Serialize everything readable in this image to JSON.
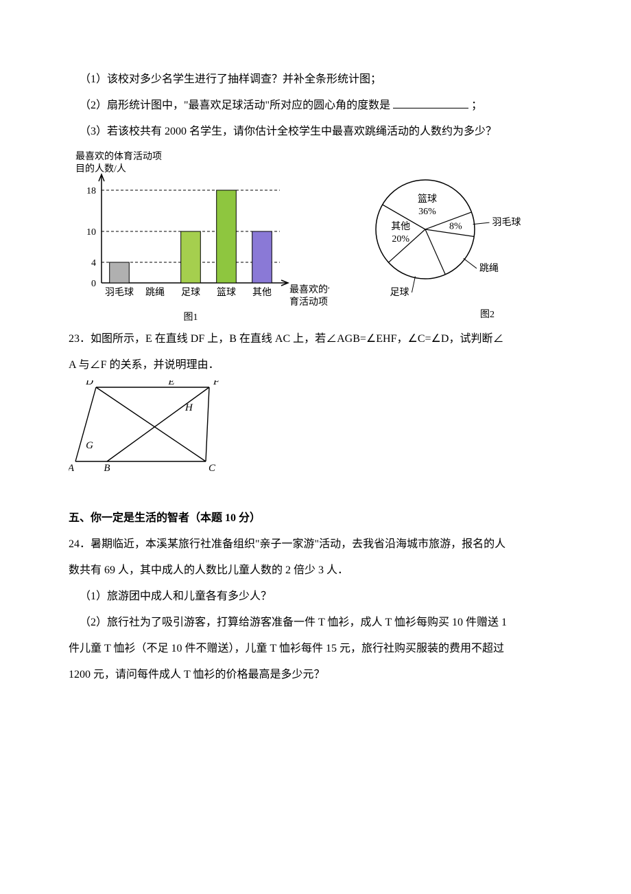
{
  "q22": {
    "part1": "（1）该校对多少名学生进行了抽样调查？并补全条形统计图；",
    "part2_prefix": "（2）扇形统计图中，\"最喜欢足球活动\"所对应的圆心角的度数是",
    "part2_suffix": "；",
    "part3": "（3）若该校共有 2000 名学生，请你估计全校学生中最喜欢跳绳活动的人数约为多少？"
  },
  "bar_chart": {
    "type": "bar",
    "y_title_line1": "最喜欢的体育活动项",
    "y_title_line2": "目的人数/人",
    "categories": [
      "羽毛球",
      "跳绳",
      "足球",
      "篮球",
      "其他"
    ],
    "values": [
      4,
      null,
      10,
      18,
      10
    ],
    "bar_colors": [
      "#b0b0b0",
      "#ffffff",
      "#a5cf4e",
      "#8ec63f",
      "#8a79d6"
    ],
    "y_ticks": [
      0,
      4,
      10,
      18
    ],
    "ymax": 20,
    "axis_color": "#000000",
    "grid_color": "#000000",
    "x_label_line1": "最喜欢的体",
    "x_label_line2": "育活动项目",
    "caption": "图1",
    "label_fontsize": 14,
    "tick_fontsize": 14
  },
  "pie_chart": {
    "type": "pie",
    "slices": [
      {
        "label": "篮球",
        "pct_text": "36%",
        "pct": 36,
        "color": "#ffffff"
      },
      {
        "label": "羽毛球",
        "pct_text": "8%",
        "pct": 8,
        "color": "#ffffff"
      },
      {
        "label": "跳绳",
        "pct_text": "",
        "pct": 16,
        "color": "#ffffff"
      },
      {
        "label": "足球",
        "pct_text": "",
        "pct": 20,
        "color": "#ffffff"
      },
      {
        "label": "其他",
        "pct_text": "20%",
        "pct": 20,
        "color": "#ffffff"
      }
    ],
    "stroke": "#000000",
    "label_fontsize": 14,
    "caption": "图2"
  },
  "q23": {
    "text_line1": "23．如图所示，E 在直线 DF 上，B 在直线 AC 上，若∠AGB=∠EHF，∠C=∠D，试判断∠",
    "text_line2": "A 与∠F 的关系，并说明理由．",
    "points": {
      "A": {
        "x": 10,
        "y": 118,
        "label": "A"
      },
      "B": {
        "x": 56,
        "y": 118,
        "label": "B"
      },
      "C": {
        "x": 200,
        "y": 118,
        "label": "C"
      },
      "D": {
        "x": 40,
        "y": 10,
        "label": "D"
      },
      "E": {
        "x": 150,
        "y": 10,
        "label": "E"
      },
      "F": {
        "x": 205,
        "y": 10,
        "label": "F"
      },
      "G": {
        "x": 44,
        "y": 85,
        "label": "G"
      },
      "H": {
        "x": 160,
        "y": 38,
        "label": "H"
      }
    },
    "stroke": "#000000",
    "label_fontsize": 15
  },
  "section5_title": "五、你一定是生活的智者（本题 10 分）",
  "q24": {
    "line1": "24．暑期临近，本溪某旅行社准备组织\"亲子一家游\"活动，去我省沿海城市旅游，报名的人",
    "line2": "数共有 69 人，其中成人的人数比儿童人数的 2 倍少 3 人．",
    "part1": "（1）旅游团中成人和儿童各有多少人？",
    "part2_l1": "（2）旅行社为了吸引游客，打算给游客准备一件 T 恤衫，成人 T 恤衫每购买 10 件赠送 1",
    "part2_l2": "件儿童 T 恤衫（不足 10 件不赠送），儿童 T 恤衫每件 15 元，旅行社购买服装的费用不超过",
    "part2_l3": "1200 元，请问每件成人 T 恤衫的价格最高是多少元？"
  }
}
